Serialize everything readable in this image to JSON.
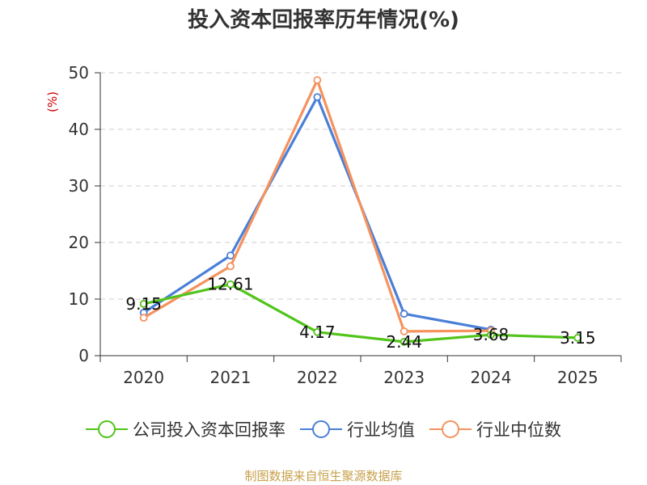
{
  "chart_data": {
    "type": "line",
    "title": "投入资本回报率历年情况(%)",
    "ylabel": "(%)",
    "xlabel": "",
    "categories": [
      "2020",
      "2021",
      "2022",
      "2023",
      "2024",
      "2025"
    ],
    "ylim": [
      0,
      50
    ],
    "yticks": [
      0,
      10,
      20,
      30,
      40,
      50
    ],
    "grid": true,
    "legend_position": "bottom",
    "series": [
      {
        "name": "公司投入资本回报率",
        "color": "#52c41a",
        "values": [
          9.15,
          12.61,
          4.17,
          2.44,
          3.68,
          3.15
        ],
        "labels": [
          "9.15",
          "12.61",
          "4.17",
          "2.44",
          "3.68",
          "3.15"
        ]
      },
      {
        "name": "行业均值",
        "color": "#4a7fd8",
        "values": [
          7.6,
          17.7,
          45.7,
          7.4,
          4.6,
          null
        ]
      },
      {
        "name": "行业中位数",
        "color": "#f5925e",
        "values": [
          6.7,
          15.8,
          48.7,
          4.3,
          4.4,
          null
        ]
      }
    ]
  },
  "source": "制图数据来自恒生聚源数据库"
}
